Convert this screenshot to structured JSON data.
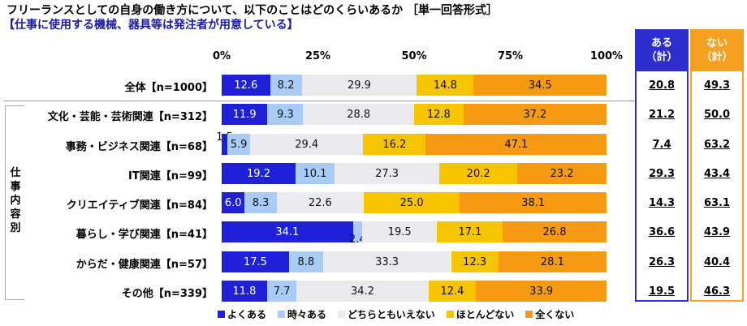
{
  "title": "フリーランスとしての自身の働き方について、以下のことはどのくらいあるか ［単一回答形式］",
  "subtitle": "【仕事に使用する機械、器具等は発注者が用意している】",
  "group_label": "仕事内容別",
  "summary_headers": {
    "aru": [
      "ある",
      "（計）"
    ],
    "nai": [
      "ない",
      "（計）"
    ]
  },
  "colors": {
    "よくある": "#2020d8",
    "時々ある": "#a8ccf5",
    "どちらともいえない": "#e9e9ee",
    "ほとんどない": "#f7c400",
    "全くない": "#f59a12",
    "aru_box": "#2e2ecf",
    "nai_box": "#f5a020"
  },
  "chart_data": {
    "type": "bar",
    "orientation": "horizontal-stacked-100",
    "x_ticks": [
      "0%",
      "25%",
      "50%",
      "75%",
      "100%"
    ],
    "xlim": [
      0,
      100
    ],
    "legend": [
      "よくある",
      "時々ある",
      "どちらともいえない",
      "ほとんどない",
      "全くない"
    ],
    "legend_position": "bottom",
    "categories": [
      "全体【n=1000】",
      "文化・芸能・芸術関連【n=312】",
      "事務・ビジネス関連【n=68】",
      "IT関連【n=99】",
      "クリエイティブ関連【n=84】",
      "暮らし・学び関連【n=41】",
      "からだ・健康関連【n=57】",
      "その他【n=339】"
    ],
    "series": [
      {
        "name": "よくある",
        "values": [
          12.6,
          11.9,
          1.5,
          19.2,
          6.0,
          34.1,
          17.5,
          11.8
        ]
      },
      {
        "name": "時々ある",
        "values": [
          8.2,
          9.3,
          5.9,
          10.1,
          8.3,
          2.4,
          8.8,
          7.7
        ]
      },
      {
        "name": "どちらともいえない",
        "values": [
          29.9,
          28.8,
          29.4,
          27.3,
          22.6,
          19.5,
          33.3,
          34.2
        ]
      },
      {
        "name": "ほとんどない",
        "values": [
          14.8,
          12.8,
          16.2,
          20.2,
          25.0,
          17.1,
          12.3,
          12.4
        ]
      },
      {
        "name": "全くない",
        "values": [
          34.5,
          37.2,
          47.1,
          23.2,
          38.1,
          26.8,
          28.1,
          33.9
        ]
      }
    ],
    "aru_total": [
      "20.8",
      "21.2",
      "7.4",
      "29.3",
      "14.3",
      "36.6",
      "26.3",
      "19.5"
    ],
    "nai_total": [
      "49.3",
      "50.0",
      "63.2",
      "43.4",
      "63.1",
      "43.9",
      "40.4",
      "46.3"
    ]
  }
}
